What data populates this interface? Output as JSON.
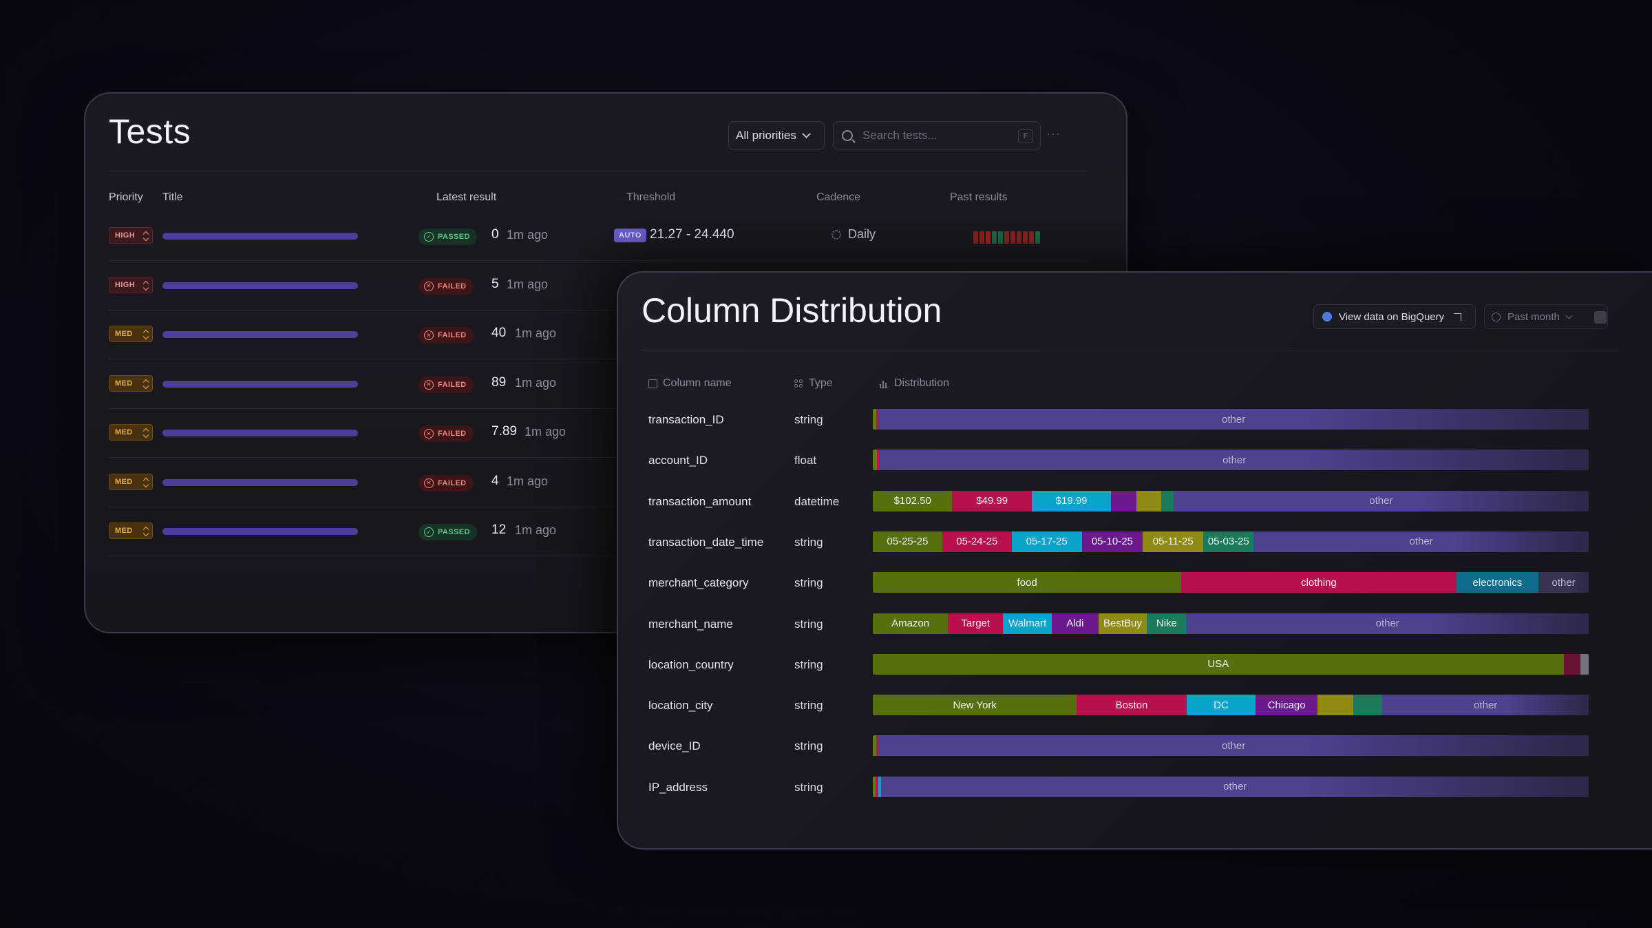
{
  "tests": {
    "title": "Tests",
    "priority_filter": "All priorities",
    "search_placeholder": "Search tests...",
    "search_shortcut": "F",
    "more": "···",
    "columns": {
      "priority": "Priority",
      "title": "Title",
      "latest_result": "Latest result",
      "threshold": "Threshold",
      "cadence": "Cadence",
      "past_results": "Past results"
    },
    "rows": [
      {
        "priority": "HIGH",
        "status": "PASSED",
        "value": "0",
        "ago": "1m ago",
        "auto": "AUTO",
        "threshold": "21.27 - 24.440",
        "cadence": "Daily"
      },
      {
        "priority": "HIGH",
        "status": "FAILED",
        "value": "5",
        "ago": "1m ago"
      },
      {
        "priority": "MED",
        "status": "FAILED",
        "value": "40",
        "ago": "1m ago"
      },
      {
        "priority": "MED",
        "status": "FAILED",
        "value": "89",
        "ago": "1m ago"
      },
      {
        "priority": "MED",
        "status": "FAILED",
        "value": "7.89",
        "ago": "1m ago"
      },
      {
        "priority": "MED",
        "status": "FAILED",
        "value": "4",
        "ago": "1m ago"
      },
      {
        "priority": "MED",
        "status": "PASSED",
        "value": "12",
        "ago": "1m ago"
      }
    ],
    "past_results_colors": [
      "#8a2424",
      "#8a2424",
      "#9a2626",
      "#1f6a43",
      "#1f6a43",
      "#8a2424",
      "#8a2424",
      "#8a2424",
      "#8a2424",
      "#8a2424",
      "#1f6a43"
    ],
    "colors": {
      "title_bar": "#4b3f9a",
      "passed": "#58c68a",
      "failed": "#ef8583",
      "auto": "#6a5fd0"
    }
  },
  "distribution": {
    "title": "Column Distribution",
    "bigquery_button": "View data on BigQuery",
    "period": "Past month",
    "columns": {
      "name": "Column name",
      "type": "Type",
      "distribution": "Distribution"
    },
    "rows": [
      {
        "name": "transaction_ID",
        "type": "string",
        "segments": [
          {
            "label": "",
            "share": 0.5,
            "color": "#5f7d14"
          },
          {
            "label": "",
            "share": 0.3,
            "color": "#c0114f"
          },
          {
            "label": "other",
            "share": 99.2,
            "color": "#4f418f"
          }
        ]
      },
      {
        "name": "account_ID",
        "type": "float",
        "segments": [
          {
            "label": "",
            "share": 0.6,
            "color": "#5f7d14"
          },
          {
            "label": "",
            "share": 0.4,
            "color": "#c0114f"
          },
          {
            "label": "other",
            "share": 99.0,
            "color": "#4f418f"
          }
        ]
      },
      {
        "name": "transaction_amount",
        "type": "datetime",
        "segments": [
          {
            "label": "$102.50",
            "share": 11.1,
            "color": "#56700f"
          },
          {
            "label": "$49.99",
            "share": 11.1,
            "color": "#b8104f"
          },
          {
            "label": "$19.99",
            "share": 11.1,
            "color": "#0aa3cc"
          },
          {
            "label": "",
            "share": 3.5,
            "color": "#6a1a8c"
          },
          {
            "label": "",
            "share": 3.5,
            "color": "#8f8a12"
          },
          {
            "label": "",
            "share": 1.7,
            "color": "#1a7a5a"
          },
          {
            "label": "other",
            "share": 58.0,
            "color": "#4f418f"
          }
        ]
      },
      {
        "name": "transaction_date_time",
        "type": "string",
        "segments": [
          {
            "label": "05-25-25",
            "share": 9.7,
            "color": "#56700f"
          },
          {
            "label": "05-24-25",
            "share": 9.7,
            "color": "#b8104f"
          },
          {
            "label": "05-17-25",
            "share": 9.8,
            "color": "#0aa3cc"
          },
          {
            "label": "05-10-25",
            "share": 8.5,
            "color": "#6a1a8c"
          },
          {
            "label": "05-11-25",
            "share": 8.5,
            "color": "#8f8a12"
          },
          {
            "label": "05-03-25",
            "share": 7.0,
            "color": "#1a7a5a"
          },
          {
            "label": "other",
            "share": 46.8,
            "color": "#4f418f"
          }
        ]
      },
      {
        "name": "merchant_category",
        "type": "string",
        "segments": [
          {
            "label": "food",
            "share": 43.1,
            "color": "#56700f"
          },
          {
            "label": "clothing",
            "share": 38.4,
            "color": "#b8104f"
          },
          {
            "label": "electronics",
            "share": 11.5,
            "color": "#0d6d8a"
          },
          {
            "label": "other",
            "share": 7.0,
            "color": "#3a3352"
          }
        ]
      },
      {
        "name": "merchant_name",
        "type": "string",
        "segments": [
          {
            "label": "Amazon",
            "share": 10.5,
            "color": "#56700f"
          },
          {
            "label": "Target",
            "share": 7.7,
            "color": "#b8104f"
          },
          {
            "label": "Walmart",
            "share": 6.8,
            "color": "#0aa3cc"
          },
          {
            "label": "Aldi",
            "share": 6.5,
            "color": "#6a1a8c"
          },
          {
            "label": "BestBuy",
            "share": 6.8,
            "color": "#8f8a12"
          },
          {
            "label": "Nike",
            "share": 5.5,
            "color": "#1a7a5a"
          },
          {
            "label": "other",
            "share": 56.2,
            "color": "#4f418f"
          }
        ]
      },
      {
        "name": "location_country",
        "type": "string",
        "segments": [
          {
            "label": "USA",
            "share": 96.5,
            "color": "#56700f"
          },
          {
            "label": "",
            "share": 2.3,
            "color": "#6a1236"
          },
          {
            "label": "",
            "share": 1.2,
            "color": "#74727e"
          }
        ]
      },
      {
        "name": "location_city",
        "type": "string",
        "segments": [
          {
            "label": "New York",
            "share": 28.5,
            "color": "#56700f"
          },
          {
            "label": "Boston",
            "share": 15.3,
            "color": "#b8104f"
          },
          {
            "label": "DC",
            "share": 9.7,
            "color": "#0aa3cc"
          },
          {
            "label": "Chicago",
            "share": 8.6,
            "color": "#6a1a8c"
          },
          {
            "label": "",
            "share": 5.0,
            "color": "#8f8a12"
          },
          {
            "label": "",
            "share": 4.1,
            "color": "#1a7a5a"
          },
          {
            "label": "other",
            "share": 28.8,
            "color": "#4f418f"
          }
        ]
      },
      {
        "name": "device_ID",
        "type": "string",
        "segments": [
          {
            "label": "",
            "share": 0.5,
            "color": "#5f7d14"
          },
          {
            "label": "",
            "share": 0.3,
            "color": "#c0114f"
          },
          {
            "label": "other",
            "share": 99.2,
            "color": "#4f418f"
          }
        ]
      },
      {
        "name": "IP_address",
        "type": "string",
        "segments": [
          {
            "label": "",
            "share": 0.4,
            "color": "#5f7d14"
          },
          {
            "label": "",
            "share": 0.4,
            "color": "#c0114f"
          },
          {
            "label": "",
            "share": 0.4,
            "color": "#0aa3cc"
          },
          {
            "label": "other",
            "share": 98.8,
            "color": "#4f418f"
          }
        ]
      }
    ]
  }
}
